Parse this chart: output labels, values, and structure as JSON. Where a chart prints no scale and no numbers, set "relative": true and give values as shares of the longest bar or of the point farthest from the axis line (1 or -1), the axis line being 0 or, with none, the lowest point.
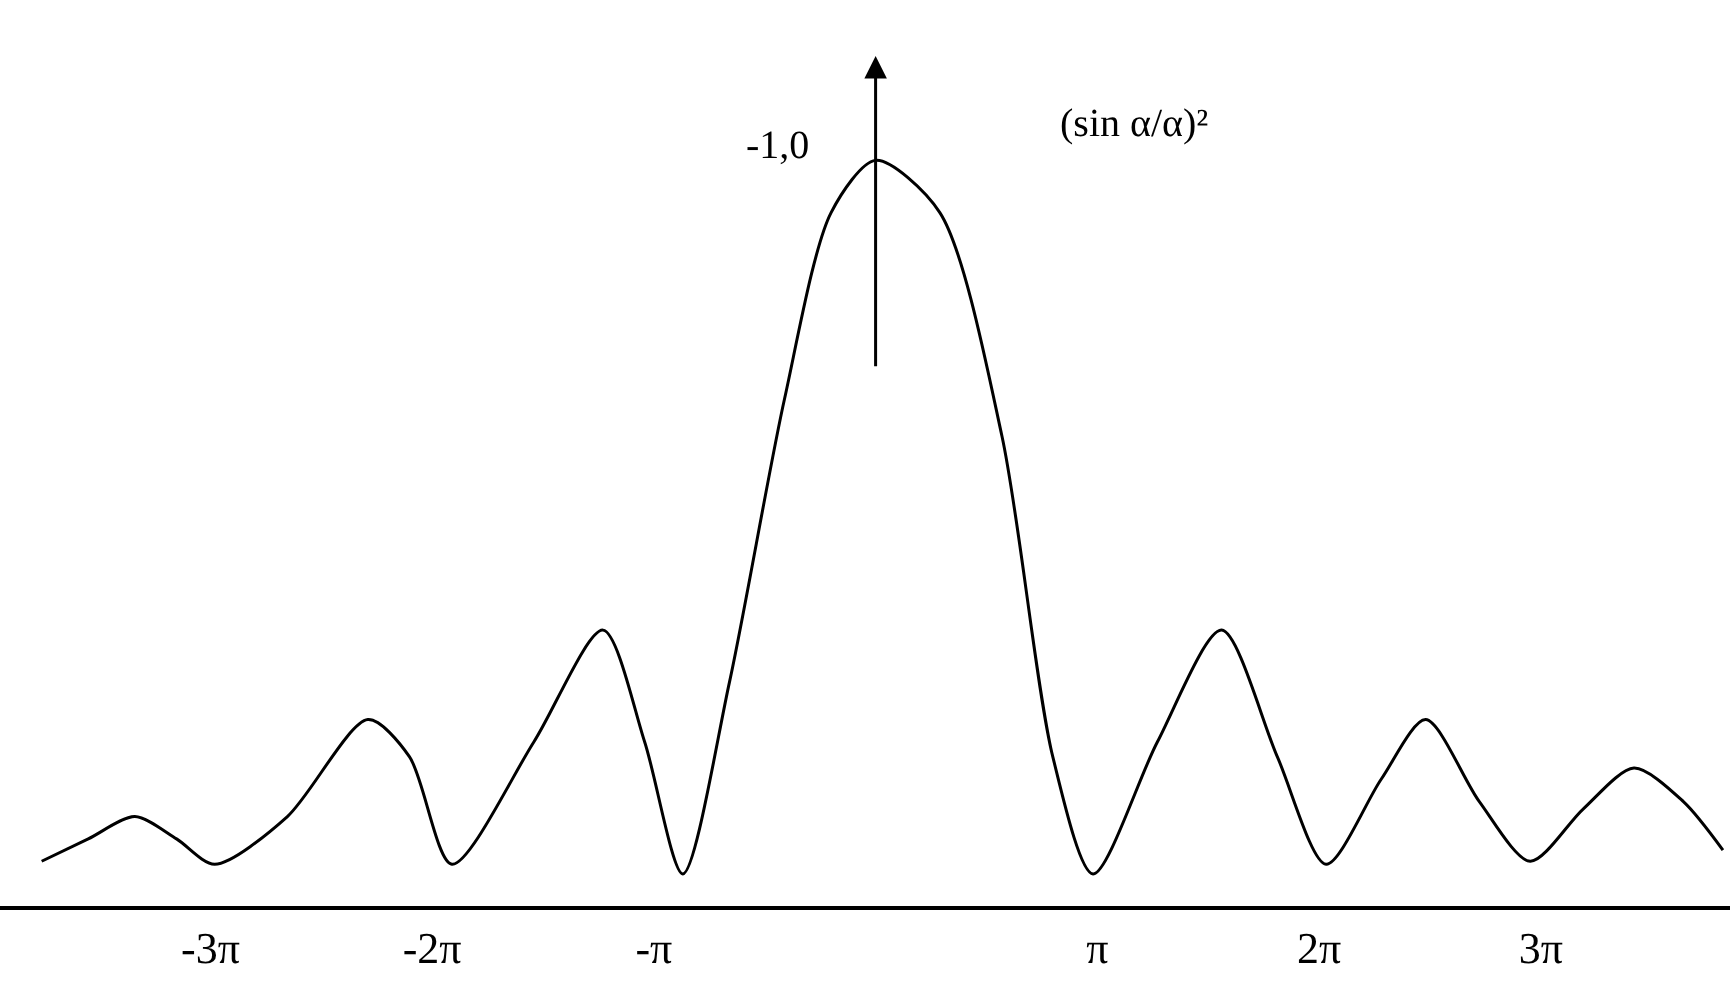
{
  "chart_data": {
    "type": "line",
    "relative": true,
    "color": "#000000",
    "x": [
      -11.81,
      -11.15,
      -10.49,
      -9.9,
      -9.36,
      -8.33,
      -7.19,
      -6.6,
      -6,
      -4.84,
      -3.86,
      -3.27,
      -2.73,
      -2.07,
      -1.29,
      -0.63,
      0,
      0.91,
      1.79,
      2.51,
      3.08,
      3.99,
      4.9,
      5.69,
      6.38,
      7.16,
      7.79,
      8.55,
      9.27,
      10.02,
      10.74,
      11.44,
      12
    ],
    "values": [
      0.06,
      0.09,
      0.12,
      0.09,
      0.056,
      0.12,
      0.25,
      0.2,
      0.056,
      0.22,
      0.37,
      0.22,
      0.043,
      0.3,
      0.68,
      0.93,
      1,
      0.93,
      0.63,
      0.2,
      0.043,
      0.22,
      0.37,
      0.2,
      0.056,
      0.17,
      0.25,
      0.14,
      0.06,
      0.13,
      0.185,
      0.14,
      0.075
    ],
    "xlim": [
      -12.4,
      12.1
    ],
    "xticks": [
      {
        "value": -9.42,
        "label": "-3π"
      },
      {
        "value": -6.28,
        "label": "-2π"
      },
      {
        "value": -3.14,
        "label": "-π"
      },
      {
        "value": 3.14,
        "label": "π"
      },
      {
        "value": 6.28,
        "label": "2π"
      },
      {
        "value": 9.42,
        "label": "3π"
      }
    ],
    "annotations": [
      "-1,0",
      "(sin α/α)²"
    ],
    "marker": "none",
    "line_style": "solid"
  }
}
